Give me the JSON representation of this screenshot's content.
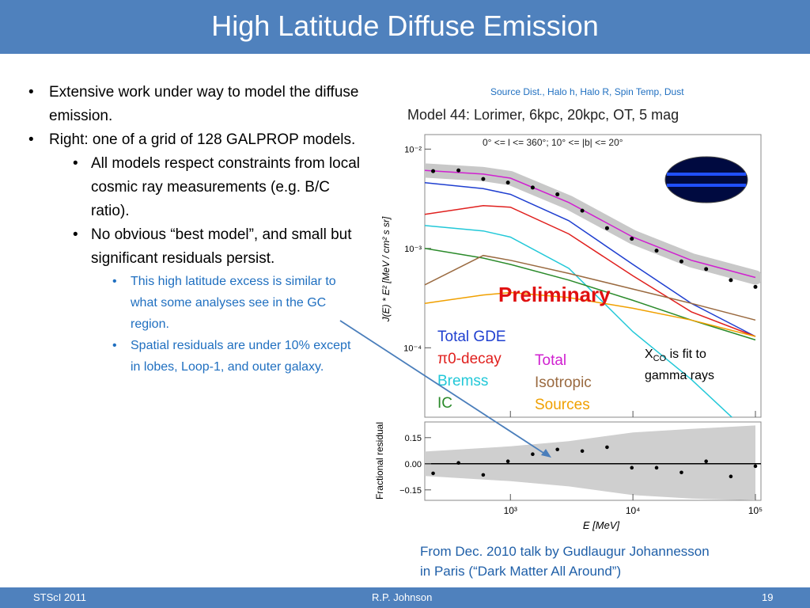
{
  "slide": {
    "title": "High Latitude Diffuse Emission",
    "footer": {
      "left": "STScI 2011",
      "center": "R.P. Johnson",
      "right": "19"
    }
  },
  "bullets": [
    {
      "level": 1,
      "text": "Extensive work under way to model the diffuse emission."
    },
    {
      "level": 1,
      "text": "Right:  one of a grid of 128 GALPROP models."
    },
    {
      "level": 2,
      "text": "All models respect constraints from local cosmic ray measurements (e.g. B/C ratio)."
    },
    {
      "level": 2,
      "text": "No obvious “best model”, and small but significant residuals persist."
    },
    {
      "level": 3,
      "text": "This high latitude excess is similar to what some analyses see in the GC region."
    },
    {
      "level": 3,
      "text": "Spatial residuals are under 10% except in lobes, Loop-1, and outer galaxy."
    }
  ],
  "figure_caption": "Source Dist., Halo h, Halo R, Spin Temp, Dust",
  "chart_data": [
    {
      "type": "line",
      "title": "Model 44: Lorimer, 6kpc, 20kpc, OT, 5 mag",
      "subtitle": "0° <= l <= 360°; 10° <= |b| <= 20°",
      "ylabel": "J(E) * E² [MeV / cm² s sr]",
      "watermark": "Preliminary",
      "xlog": true,
      "ylog": true,
      "xlim": [
        200,
        100000
      ],
      "ylim": [
        2e-05,
        0.014
      ],
      "yticks": [
        {
          "value": 0.01,
          "label": "10⁻²"
        },
        {
          "value": 0.001,
          "label": "10⁻³"
        },
        {
          "value": 0.0001,
          "label": "10⁻⁴"
        }
      ],
      "x": [
        200,
        600,
        1000,
        3000,
        10000,
        30000,
        100000
      ],
      "series": [
        {
          "name": "Total GDE",
          "color": "#1f3fd0",
          "values": [
            0.0046,
            0.004,
            0.0035,
            0.0019,
            0.00069,
            0.00028,
            0.00013
          ]
        },
        {
          "name": "π0-decay",
          "color": "#e0201e",
          "values": [
            0.0022,
            0.0027,
            0.0026,
            0.0014,
            0.00053,
            0.00023,
            0.00013
          ]
        },
        {
          "name": "Bremss",
          "color": "#22c8d8",
          "values": [
            0.0017,
            0.0015,
            0.0013,
            0.00063,
            0.000145,
            4.8e-05,
            1.2e-05
          ]
        },
        {
          "name": "IC",
          "color": "#2a8a2a",
          "values": [
            0.001,
            0.0008,
            0.00069,
            0.00048,
            0.0003,
            0.00019,
            0.00012
          ]
        },
        {
          "name": "Total",
          "color": "#d020d0",
          "values": [
            0.0061,
            0.0056,
            0.0051,
            0.0029,
            0.0013,
            0.00076,
            0.00051
          ]
        },
        {
          "name": "Isotropic",
          "color": "#9a6a40",
          "values": [
            0.00043,
            0.00085,
            0.00076,
            0.00056,
            0.00039,
            0.00028,
            0.00019
          ]
        },
        {
          "name": "Sources",
          "color": "#f0a000",
          "values": [
            0.00028,
            0.00034,
            0.00036,
            0.00032,
            0.00025,
            0.00019,
            0.00013
          ]
        }
      ],
      "points": {
        "x": [
          234,
          377,
          600,
          955,
          1520,
          2420,
          3860,
          6150,
          9800,
          15600,
          24900,
          39600,
          63000,
          100000
        ],
        "values": [
          0.006,
          0.0061,
          0.005,
          0.0046,
          0.0041,
          0.0035,
          0.0024,
          0.0016,
          0.00125,
          0.00095,
          0.00074,
          0.00062,
          0.00048,
          0.00041
        ]
      }
    },
    {
      "type": "scatter",
      "ylabel": "Fractional residual",
      "xlabel": "E [MeV]",
      "xlog": true,
      "xlim": [
        200,
        100000
      ],
      "ylim": [
        -0.21,
        0.24
      ],
      "xticks": [
        {
          "value": 1000,
          "label": "10³"
        },
        {
          "value": 10000,
          "label": "10⁴"
        },
        {
          "value": 100000,
          "label": "10⁵"
        }
      ],
      "yticks": [
        0.15,
        {
          "value": 0,
          "label": "0.00"
        },
        {
          "value": -0.15,
          "label": "−0.15"
        }
      ],
      "x": [
        234,
        377,
        600,
        955,
        1520,
        2420,
        3860,
        6150,
        9800,
        15600,
        24900,
        39600,
        63000,
        100000
      ],
      "values": [
        -0.055,
        0.005,
        -0.064,
        0.014,
        0.055,
        0.082,
        0.073,
        0.095,
        -0.023,
        -0.023,
        -0.05,
        0.014,
        -0.073,
        -0.014
      ],
      "band": {
        "x": [
          200,
          1000,
          3000,
          10000,
          30000,
          100000
        ],
        "upper": [
          0.07,
          0.1,
          0.13,
          0.18,
          0.2,
          0.22
        ],
        "lower": [
          -0.07,
          -0.1,
          -0.13,
          -0.18,
          -0.2,
          -0.21
        ]
      }
    }
  ],
  "annotation": {
    "symbol": "X",
    "subscript": "CO",
    "text": "is fit to gamma rays"
  },
  "credit": [
    "From Dec. 2010 talk by Gudlaugur Johannesson",
    "in Paris (“Dark Matter All Around”)"
  ]
}
